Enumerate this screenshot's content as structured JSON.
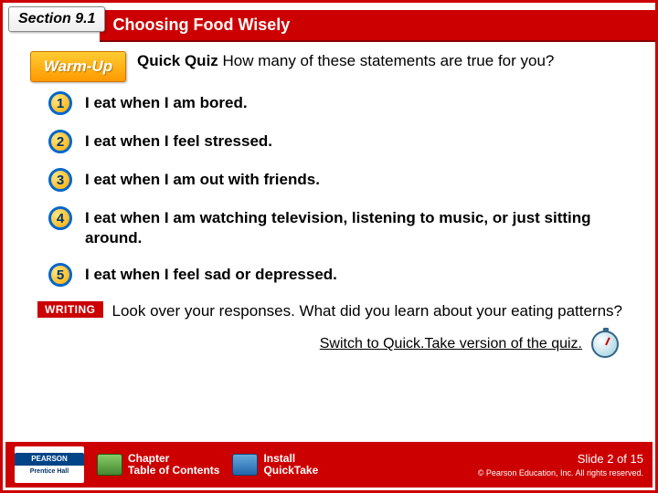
{
  "section_label": "Section 9.1",
  "chapter_title": "Choosing Food Wisely",
  "warmup_label": "Warm-Up",
  "quiz_lead": "Quick Quiz",
  "quiz_prompt_rest": " How many of these statements are true for you?",
  "items": [
    "I eat when I am bored.",
    "I eat when I feel stressed.",
    "I eat when I am out with friends.",
    "I eat when I am watching television, listening to music, or just sitting around.",
    "I eat when I feel sad or depressed."
  ],
  "writing_label": "WRITING",
  "writing_text": "Look over your responses. What did you learn about your eating patterns?",
  "switch_link": "Switch to Quick.Take version of the quiz.",
  "footer": {
    "pearson_top": "PEARSON",
    "pearson_bottom": "Prentice Hall",
    "btn1_line1": "Chapter",
    "btn1_line2": "Table of Contents",
    "btn2_line1": "Install",
    "btn2_line2": "QuickTake",
    "slide_num": "Slide 2 of 15",
    "copyright": "© Pearson Education, Inc. All rights reserved."
  },
  "colors": {
    "brand_red": "#cc0000",
    "badge_orange": "#ff9900",
    "badge_blue_ring": "#0066cc"
  }
}
